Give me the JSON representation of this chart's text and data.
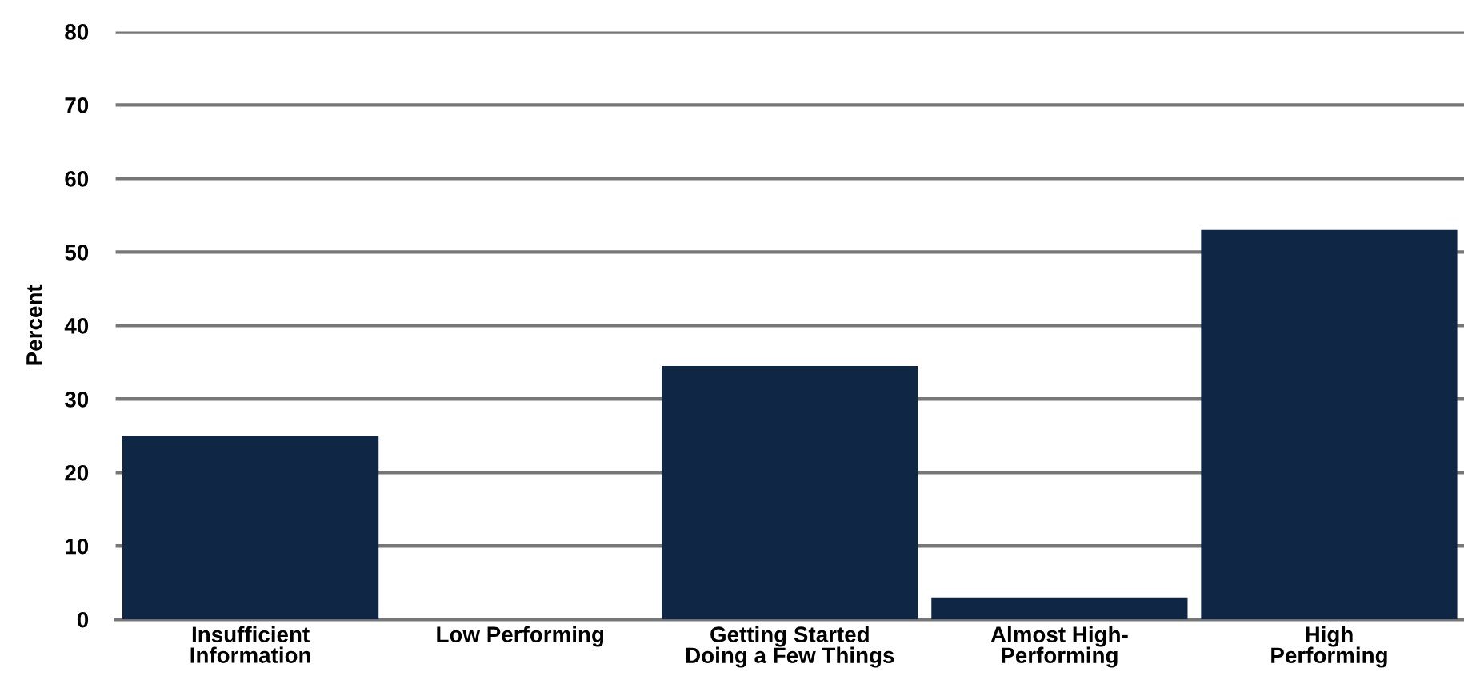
{
  "chart_data": {
    "type": "bar",
    "ylabel": "Percent",
    "categories": [
      "Insufficient\nInformation",
      "Low Performing",
      "Getting Started\nDoing a Few Things",
      "Almost High-\nPerforming",
      "High\nPerforming"
    ],
    "values": [
      25,
      0,
      34.5,
      3,
      53
    ],
    "color": "#0f2744",
    "ylim": [
      0,
      80
    ],
    "yticks": [
      0,
      10,
      20,
      30,
      40,
      50,
      60,
      70,
      80
    ],
    "grid": "y"
  }
}
